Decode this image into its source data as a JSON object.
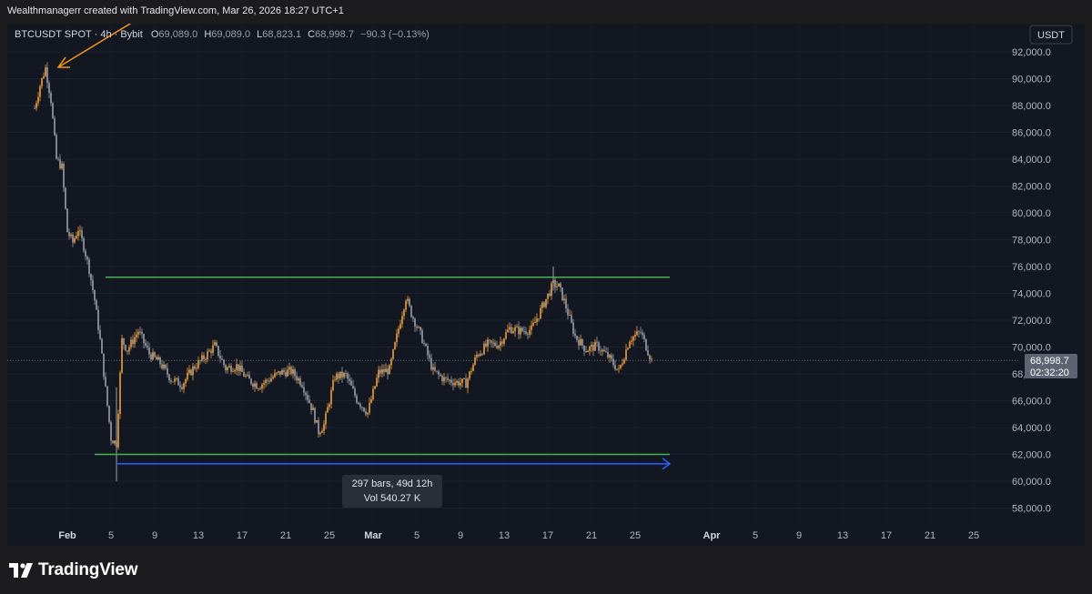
{
  "header": {
    "attribution": "Wealthmanagerr created with TradingView.com, Mar 26, 2026 18:27 UTC+1"
  },
  "legend": {
    "symbol": "BTCUSDT SPOT · 4h · Bybit",
    "o_label": "O",
    "o_value": "69,089.0",
    "h_label": "H",
    "h_value": "69,089.0",
    "l_label": "L",
    "l_value": "68,823.1",
    "c_label": "C",
    "c_value": "68,998.7",
    "change": "−90.3 (−0.13%)"
  },
  "currency_button": "USDT",
  "price_tag": {
    "price": "68,998.7",
    "countdown": "02:32:20"
  },
  "measure_tooltip": {
    "line1": "297 bars, 49d 12h",
    "line2": "Vol 540.27 K"
  },
  "footer": {
    "brand": "TradingView"
  },
  "colors": {
    "background": "#121722",
    "up_candle": "#f0a23a",
    "down_candle": "#9aa0aa",
    "range_lines": "#4caf50",
    "measure_arrow": "#2962ff",
    "annotation_arrow": "#f7931a",
    "price_tag_bg": "#5d6370"
  },
  "chart_data": {
    "type": "candlestick",
    "symbol": "BTCUSDT SPOT",
    "interval": "4h",
    "exchange": "Bybit",
    "y_axis": {
      "ticks": [
        "58,000.0",
        "60,000.0",
        "62,000.0",
        "64,000.0",
        "66,000.0",
        "68,000.0",
        "70,000.0",
        "72,000.0",
        "74,000.0",
        "76,000.0",
        "78,000.0",
        "80,000.0",
        "82,000.0",
        "84,000.0",
        "86,000.0",
        "88,000.0",
        "90,000.0",
        "92,000.0"
      ],
      "ylim": [
        57200,
        93300
      ]
    },
    "x_axis": {
      "ticks": [
        "Feb",
        "5",
        "9",
        "13",
        "17",
        "21",
        "25",
        "Mar",
        "5",
        "9",
        "13",
        "17",
        "21",
        "25",
        "Apr",
        "5",
        "9",
        "13",
        "17",
        "21",
        "25"
      ]
    },
    "last_price": 68998.7,
    "price_path": [
      [
        "Jan 29 00:00",
        87800
      ],
      [
        "Jan 29 12:00",
        89500
      ],
      [
        "Jan 30 00:00",
        90800
      ],
      [
        "Jan 30 12:00",
        88400
      ],
      [
        "Jan 31 00:00",
        84000
      ],
      [
        "Jan 31 12:00",
        83400
      ],
      [
        "Feb 1 00:00",
        78600
      ],
      [
        "Feb 1 12:00",
        77800
      ],
      [
        "Feb 2 00:00",
        78800
      ],
      [
        "Feb 2 12:00",
        77500
      ],
      [
        "Feb 3 00:00",
        75800
      ],
      [
        "Feb 3 12:00",
        73500
      ],
      [
        "Feb 4 00:00",
        70500
      ],
      [
        "Feb 5 00:00",
        63200
      ],
      [
        "Feb 5 12:00",
        62800
      ],
      [
        "Feb 6 00:00",
        70500
      ],
      [
        "Feb 6 12:00",
        69800
      ],
      [
        "Feb 7 12:00",
        71200
      ],
      [
        "Feb 8 12:00",
        69500
      ],
      [
        "Feb 9 12:00",
        68800
      ],
      [
        "Feb 10 12:00",
        67600
      ],
      [
        "Feb 11 12:00",
        67200
      ],
      [
        "Feb 12 12:00",
        68400
      ],
      [
        "Feb 13 12:00",
        69200
      ],
      [
        "Feb 14 12:00",
        70100
      ],
      [
        "Feb 15 12:00",
        68400
      ],
      [
        "Feb 16 12:00",
        68600
      ],
      [
        "Feb 17 12:00",
        67600
      ],
      [
        "Feb 18 12:00",
        67100
      ],
      [
        "Feb 19 12:00",
        67600
      ],
      [
        "Feb 20 12:00",
        68100
      ],
      [
        "Feb 21 12:00",
        68200
      ],
      [
        "Feb 22 12:00",
        67300
      ],
      [
        "Feb 23 12:00",
        65200
      ],
      [
        "Feb 24 00:00",
        63700
      ],
      [
        "Feb 24 12:00",
        64200
      ],
      [
        "Feb 25 12:00",
        67800
      ],
      [
        "Feb 26 12:00",
        67900
      ],
      [
        "Feb 27 12:00",
        66100
      ],
      [
        "Feb 28 12:00",
        65100
      ],
      [
        "Mar 1 12:00",
        68100
      ],
      [
        "Mar 2 12:00",
        68300
      ],
      [
        "Mar 3 12:00",
        72000
      ],
      [
        "Mar 4 00:00",
        73700
      ],
      [
        "Mar 4 12:00",
        72500
      ],
      [
        "Mar 5 12:00",
        70600
      ],
      [
        "Mar 6 12:00",
        68200
      ],
      [
        "Mar 7 12:00",
        67600
      ],
      [
        "Mar 8 12:00",
        67400
      ],
      [
        "Mar 9 12:00",
        67300
      ],
      [
        "Mar 10 12:00",
        69400
      ],
      [
        "Mar 11 12:00",
        70200
      ],
      [
        "Mar 12 12:00",
        70200
      ],
      [
        "Mar 13 12:00",
        71400
      ],
      [
        "Mar 14 12:00",
        71200
      ],
      [
        "Mar 15 12:00",
        71300
      ],
      [
        "Mar 16 12:00",
        73000
      ],
      [
        "Mar 17 12:00",
        74700
      ],
      [
        "Mar 18 00:00",
        74500
      ],
      [
        "Mar 18 12:00",
        73400
      ],
      [
        "Mar 19 12:00",
        70800
      ],
      [
        "Mar 20 12:00",
        69800
      ],
      [
        "Mar 21 12:00",
        70100
      ],
      [
        "Mar 22 12:00",
        69300
      ],
      [
        "Mar 23 12:00",
        68200
      ],
      [
        "Mar 24 12:00",
        70600
      ],
      [
        "Mar 25 12:00",
        71100
      ],
      [
        "Mar 26 12:00",
        69000
      ]
    ],
    "drawings": {
      "resistance_line": 75200,
      "support_line": 62000,
      "measure_range": {
        "price": 61300,
        "from": "Feb 5",
        "to": "Mar 27",
        "bars": 297,
        "duration": "49d 12h",
        "volume": "540.27 K"
      }
    }
  }
}
